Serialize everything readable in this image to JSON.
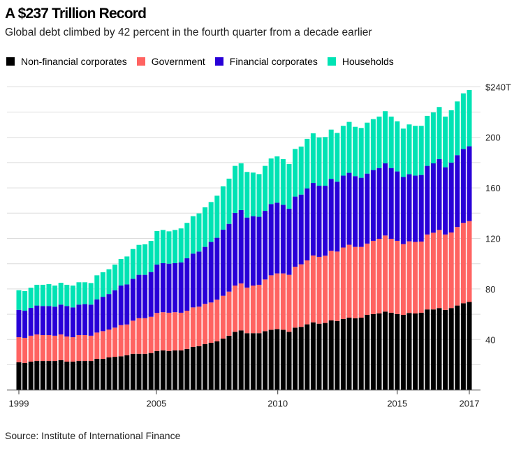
{
  "title": "A $237 Trillion Record",
  "subtitle": "Global debt climbed by 42 percent in the fourth quarter from a decade earlier",
  "source": "Source: Institute of International Finance",
  "chart_data": {
    "type": "bar",
    "stacked": true,
    "title": "A $237 Trillion Record",
    "subtitle": "Global debt climbed by 42 percent in the fourth quarter from a decade earlier",
    "xlabel": "",
    "ylabel": "",
    "ylim": [
      0,
      240
    ],
    "y_unit": "trillion USD",
    "grid": true,
    "legend_position": "top-left",
    "y_ticks": [
      {
        "value": 240,
        "label": "$240T"
      },
      {
        "value": 200,
        "label": "200"
      },
      {
        "value": 160,
        "label": "160"
      },
      {
        "value": 120,
        "label": "120"
      },
      {
        "value": 80,
        "label": "80"
      },
      {
        "value": 40,
        "label": "40"
      }
    ],
    "x_ticks": [
      "1999",
      "2005",
      "2010",
      "2015",
      "2017"
    ],
    "categories": [
      "1999Q1",
      "1999Q2",
      "1999Q3",
      "1999Q4",
      "2000Q1",
      "2000Q2",
      "2000Q3",
      "2000Q4",
      "2001Q1",
      "2001Q2",
      "2001Q3",
      "2001Q4",
      "2002Q1",
      "2002Q2",
      "2002Q3",
      "2002Q4",
      "2003Q1",
      "2003Q2",
      "2003Q3",
      "2003Q4",
      "2004Q1",
      "2004Q2",
      "2004Q3",
      "2004Q4",
      "2005Q1",
      "2005Q2",
      "2005Q3",
      "2005Q4",
      "2006Q1",
      "2006Q2",
      "2006Q3",
      "2006Q4",
      "2007Q1",
      "2007Q2",
      "2007Q3",
      "2007Q4",
      "2008Q1",
      "2008Q2",
      "2008Q3",
      "2008Q4",
      "2009Q1",
      "2009Q2",
      "2009Q3",
      "2009Q4",
      "2010Q1",
      "2010Q2",
      "2010Q3",
      "2010Q4",
      "2011Q1",
      "2011Q2",
      "2011Q3",
      "2011Q4",
      "2012Q1",
      "2012Q2",
      "2012Q3",
      "2012Q4",
      "2013Q1",
      "2013Q2",
      "2013Q3",
      "2013Q4",
      "2014Q1",
      "2014Q2",
      "2014Q3",
      "2014Q4",
      "2015Q1",
      "2015Q2",
      "2015Q3",
      "2015Q4",
      "2016Q1",
      "2016Q2",
      "2016Q3",
      "2016Q4",
      "2017Q1",
      "2017Q2",
      "2017Q3",
      "2017Q4"
    ],
    "series": [
      {
        "name": "Non-financial corporates",
        "color": "#000000",
        "values": [
          22,
          21.4,
          22.5,
          23,
          23,
          23,
          23,
          23.6,
          22.5,
          22.5,
          23,
          23,
          23,
          24.7,
          24.7,
          25.8,
          26.3,
          26.7,
          27.5,
          28.7,
          28.7,
          28.7,
          29.3,
          30.9,
          31.4,
          30.8,
          31.4,
          31.4,
          32.5,
          34.1,
          34.7,
          36.3,
          37.4,
          38.5,
          40.7,
          43,
          46.1,
          47.2,
          45,
          45,
          45,
          46.6,
          47.7,
          48.3,
          47.7,
          46.1,
          49.4,
          50,
          52,
          53.6,
          52.5,
          53.1,
          55.1,
          54.6,
          56.2,
          57.3,
          56.8,
          57.3,
          59.5,
          60.1,
          60.6,
          62.1,
          61.2,
          60.1,
          59.5,
          61,
          60.6,
          61.2,
          63.8,
          63.8,
          64.9,
          63.4,
          64.9,
          66.9,
          68.7,
          69.7
        ]
      },
      {
        "name": "Government",
        "color": "#ff6361",
        "values": [
          19.8,
          19.9,
          20.5,
          21,
          20.5,
          20.5,
          20,
          20.4,
          19.9,
          19.3,
          20.5,
          20.5,
          20,
          20.8,
          21.9,
          22.1,
          23.1,
          24.7,
          24.4,
          26.2,
          28.2,
          28.2,
          28.7,
          30.1,
          30.2,
          30.4,
          30.2,
          29.8,
          30.3,
          31.3,
          31.3,
          31.9,
          31.9,
          33,
          33.9,
          34.9,
          36.6,
          37.2,
          36.1,
          37.7,
          38.3,
          40.9,
          43.1,
          44,
          44.6,
          45.1,
          48.2,
          49.5,
          50.6,
          52.9,
          52.9,
          53.2,
          55.1,
          55,
          56.6,
          57.7,
          56.5,
          56,
          56.4,
          58,
          59.1,
          60.2,
          58.5,
          58,
          56,
          56.7,
          56.6,
          56.3,
          59.3,
          60.7,
          61.8,
          59.7,
          59.8,
          62.1,
          63.6,
          64
        ]
      },
      {
        "name": "Financial corporates",
        "color": "#2800d7",
        "values": [
          21.7,
          21.5,
          22,
          22.9,
          23,
          23,
          23,
          23.6,
          24.1,
          23.6,
          24.1,
          24.5,
          24.6,
          26.2,
          27.2,
          28.1,
          29.6,
          31.3,
          31.7,
          33.1,
          34.3,
          34.3,
          35.4,
          38.3,
          38.8,
          38.8,
          38.8,
          39.8,
          41.5,
          42.6,
          43.6,
          45.1,
          47.9,
          49,
          52.3,
          53.6,
          57.5,
          58,
          55.4,
          54.9,
          53.8,
          54.3,
          56.4,
          56,
          54.3,
          52.3,
          55.5,
          55.2,
          56.9,
          57.4,
          56.3,
          55.4,
          56.9,
          55.3,
          56.9,
          56.9,
          56,
          54.7,
          55.4,
          56,
          56,
          57.1,
          56,
          54.9,
          53.1,
          53.1,
          52.5,
          52.7,
          54.3,
          54.9,
          56,
          53.2,
          55.3,
          56.9,
          58.4,
          59.2
        ]
      },
      {
        "name": "Households",
        "color": "#00e3b4",
        "values": [
          15.5,
          15.5,
          16,
          16.4,
          16.8,
          17.3,
          16.7,
          17.3,
          16.8,
          17.3,
          17.7,
          17.3,
          17.1,
          19.1,
          19.4,
          19.6,
          20.3,
          21,
          22.1,
          23.6,
          23.7,
          24.1,
          24.6,
          26.5,
          26.3,
          25.6,
          26.3,
          26.9,
          28,
          29.6,
          30.2,
          31.3,
          31.6,
          33.3,
          34.3,
          35.8,
          37.2,
          37,
          36.1,
          34.5,
          33.8,
          35.6,
          36.1,
          36.6,
          36.1,
          35.4,
          37.7,
          38,
          39.3,
          39.3,
          38.2,
          38.5,
          39,
          38.6,
          39.4,
          40.3,
          39,
          39.4,
          40.3,
          40.3,
          40.7,
          41.3,
          40.7,
          39.7,
          38.3,
          39.4,
          39.4,
          38.9,
          39.6,
          40.3,
          41.3,
          40.1,
          41.4,
          42.5,
          44.1,
          44.5
        ]
      }
    ]
  }
}
